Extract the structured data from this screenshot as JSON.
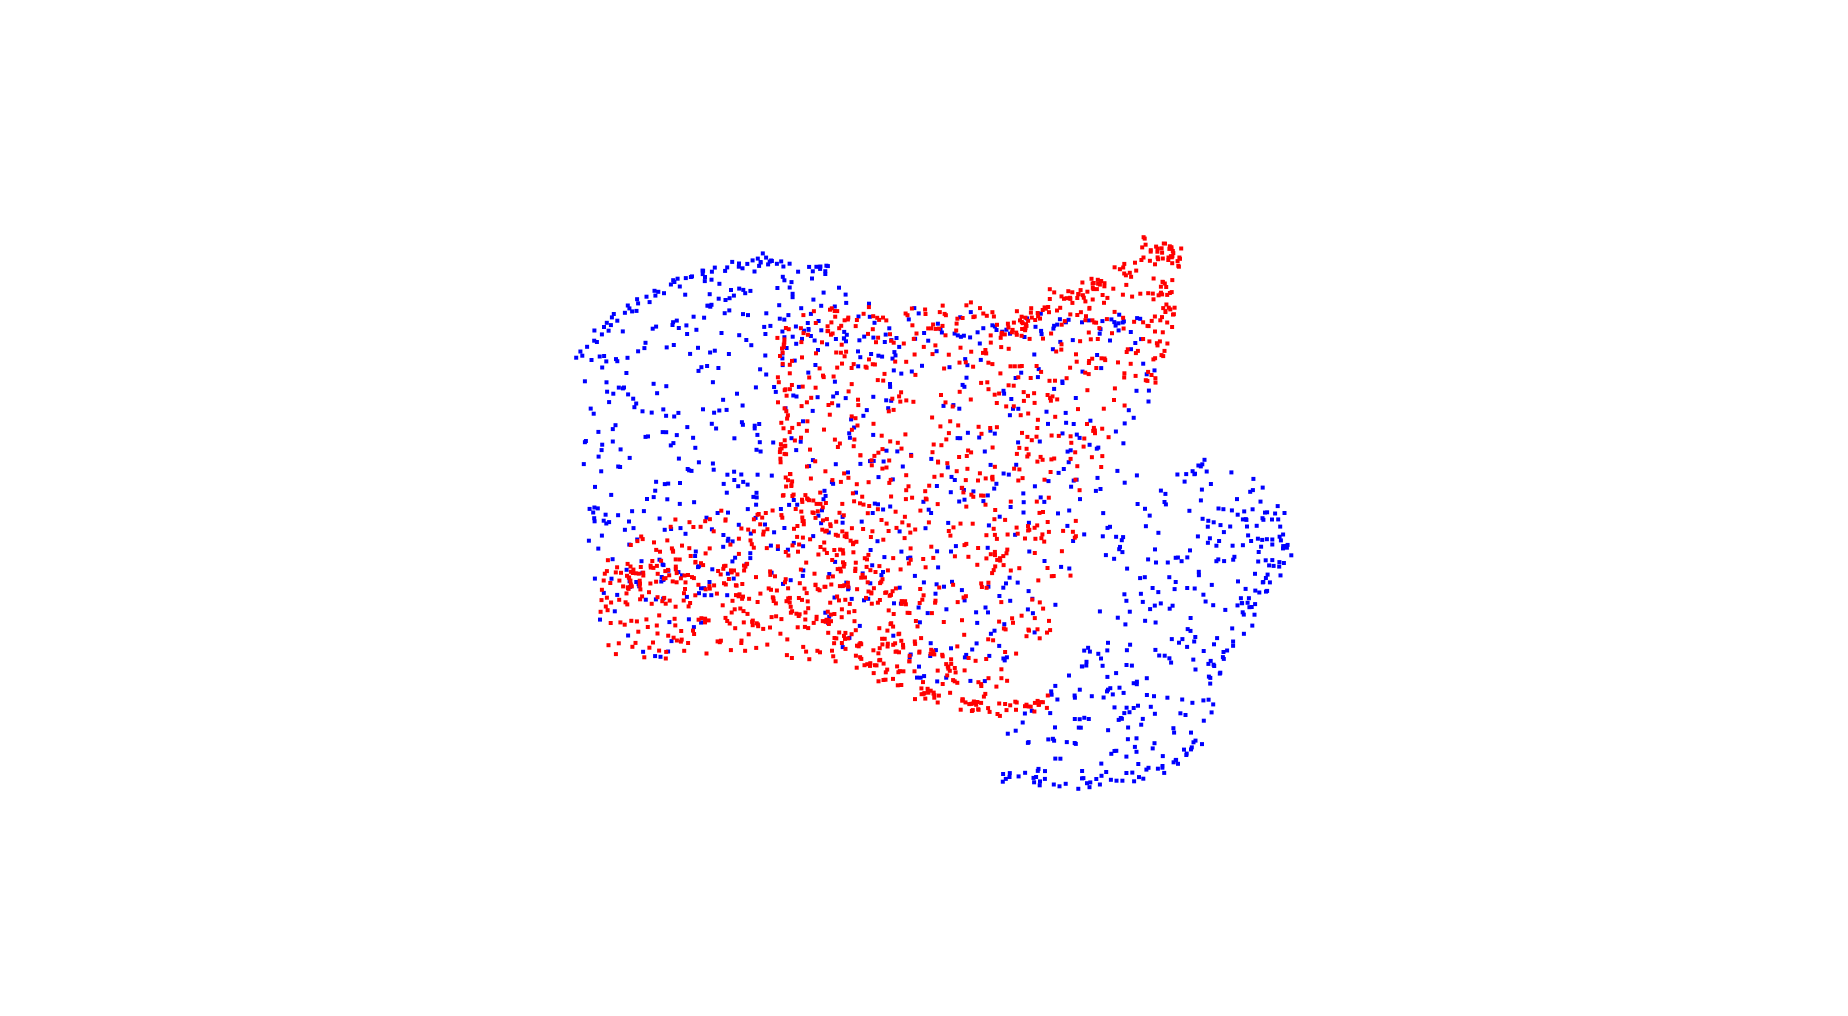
{
  "scene": {
    "background_color": "#ffffff",
    "point_marker": "square"
  },
  "point_cloud": {
    "type": "scatter",
    "series": [
      {
        "color": "#0000ff"
      },
      {
        "color": "#ff0000"
      }
    ]
  }
}
